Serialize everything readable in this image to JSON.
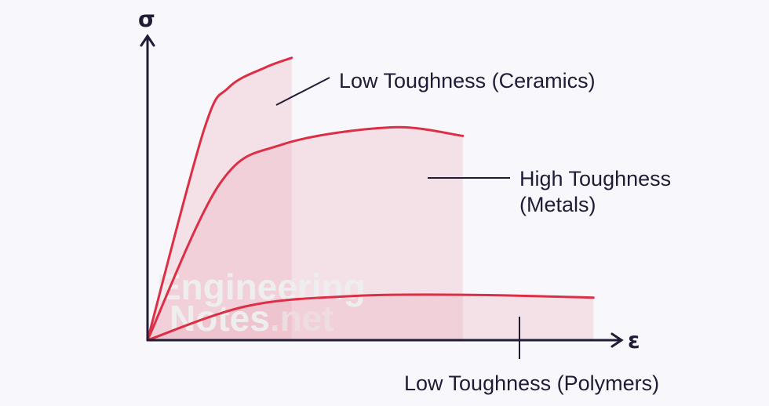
{
  "chart_data": {
    "type": "line",
    "title": "",
    "xlabel": "ε",
    "ylabel": "σ",
    "grid": false,
    "xlim": [
      0,
      10
    ],
    "ylim": [
      0,
      10
    ],
    "series": [
      {
        "name": "Low Toughness (Ceramics)",
        "color": "#dc2f45",
        "points": [
          [
            0,
            0
          ],
          [
            1.25,
            7.4
          ],
          [
            1.8,
            8.9
          ],
          [
            2.6,
            9.6
          ],
          [
            3.2,
            9.95
          ]
        ]
      },
      {
        "name": "High Toughness (Metals)",
        "color": "#dc2f45",
        "points": [
          [
            0,
            0
          ],
          [
            1.6,
            5.5
          ],
          [
            3.0,
            6.9
          ],
          [
            5.4,
            7.5
          ],
          [
            7.0,
            7.2
          ]
        ]
      },
      {
        "name": "Low Toughness (Polymers)",
        "color": "#dc2f45",
        "points": [
          [
            0,
            0
          ],
          [
            2.2,
            1.2
          ],
          [
            4.5,
            1.55
          ],
          [
            7.0,
            1.6
          ],
          [
            9.9,
            1.5
          ]
        ]
      }
    ],
    "annotations": [
      {
        "series": 0,
        "lines": [
          "Low Toughness (Ceramics)"
        ]
      },
      {
        "series": 1,
        "lines": [
          "High Toughness",
          "(Metals)"
        ]
      },
      {
        "series": 2,
        "lines": [
          "Low Toughness (Polymers)"
        ]
      }
    ],
    "watermark": {
      "line1": "Engineering",
      "line2": "Notes",
      "dot": ".net"
    },
    "colors": {
      "curve": "#dc2f45",
      "fill": "#e8a2ad",
      "axis": "#1f1d35",
      "background": "#f8f7fc"
    }
  }
}
